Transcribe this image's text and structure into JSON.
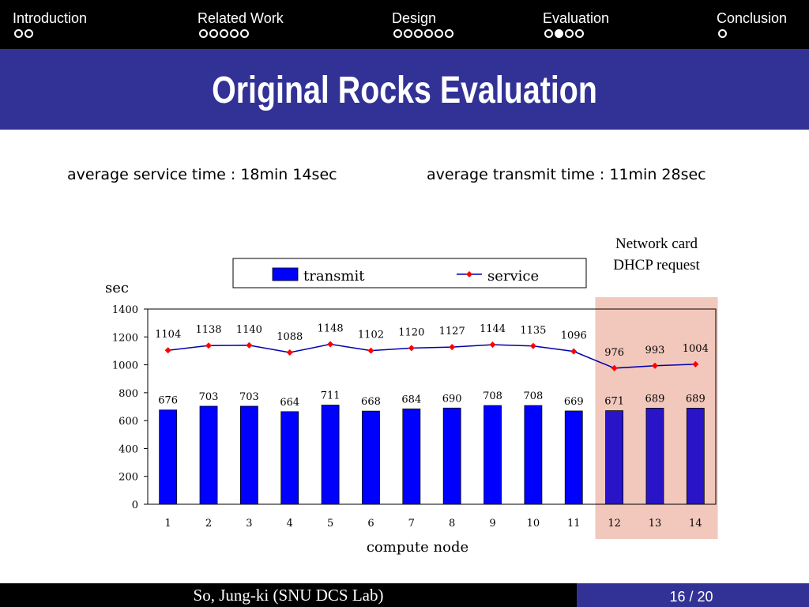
{
  "nav": {
    "sections": [
      {
        "label": "Introduction",
        "total": 2,
        "active": -1
      },
      {
        "label": "Related Work",
        "total": 5,
        "active": -1
      },
      {
        "label": "Design",
        "total": 6,
        "active": -1
      },
      {
        "label": "Evaluation",
        "total": 4,
        "active": 1
      },
      {
        "label": "Conclusion",
        "total": 1,
        "active": -1
      }
    ]
  },
  "slide": {
    "title": "Original Rocks Evaluation",
    "avg_service": "average service time : 18min 14sec",
    "avg_transmit": "average transmit time : 11min 28sec"
  },
  "footer": {
    "author": "So, Jung-ki (SNU DCS Lab)",
    "page": "16 / 20"
  },
  "chart_data": {
    "type": "bar",
    "categories": [
      "1",
      "2",
      "3",
      "4",
      "5",
      "6",
      "7",
      "8",
      "9",
      "10",
      "11",
      "12",
      "13",
      "14"
    ],
    "series": [
      {
        "name": "transmit",
        "type": "bar",
        "color": "#0000ff",
        "values": [
          676,
          703,
          703,
          664,
          711,
          668,
          684,
          690,
          708,
          708,
          669,
          671,
          689,
          689
        ]
      },
      {
        "name": "service",
        "type": "line",
        "color": "#0000aa",
        "marker_color": "#ff0000",
        "values": [
          1104,
          1138,
          1140,
          1088,
          1148,
          1102,
          1120,
          1127,
          1144,
          1135,
          1096,
          976,
          993,
          1004
        ]
      }
    ],
    "ylabel": "sec",
    "xlabel": "compute node",
    "ylim": [
      0,
      1400
    ],
    "yticks": [
      "0",
      "200",
      "400",
      "600",
      "800",
      "1000",
      "1200",
      "1400"
    ],
    "legend_position": "top",
    "highlight": {
      "categories": [
        "12",
        "13",
        "14"
      ],
      "color": "#f2c8bc",
      "bar_color": "#2a14c8",
      "annotation": [
        "Network card",
        "DHCP request"
      ]
    }
  }
}
